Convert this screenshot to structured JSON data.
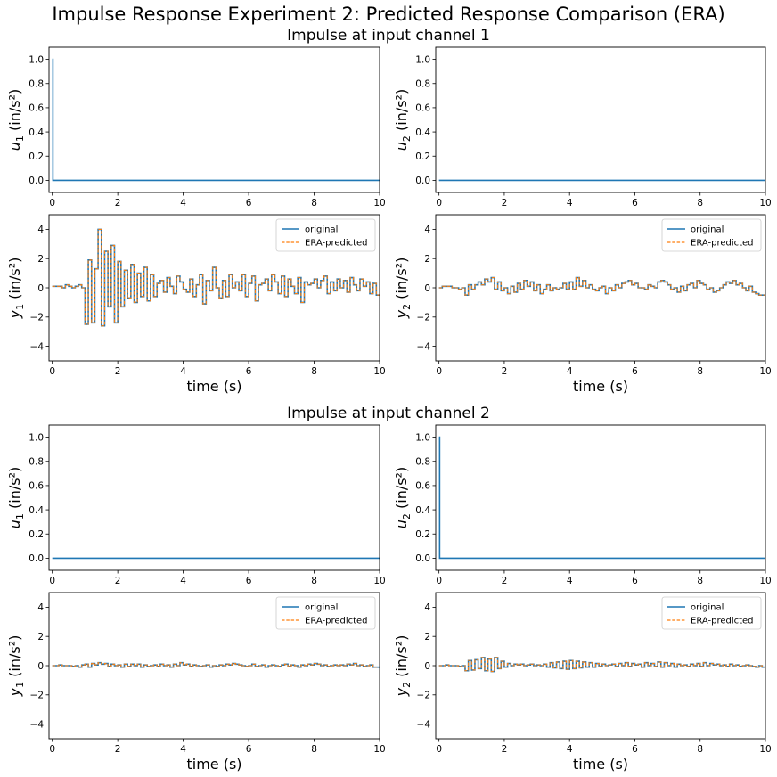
{
  "figure": {
    "suptitle": "Impulse Response Experiment 2: Predicted Response Comparison (ERA)",
    "group_titles": [
      "Impulse at input channel 1",
      "Impulse at input channel 2"
    ]
  },
  "colors": {
    "original": "#1f77b4",
    "predicted": "#ff7f0e",
    "axis": "#000000"
  },
  "legend": {
    "original": "original",
    "predicted": "ERA-predicted",
    "placement": "upper right"
  },
  "chart_data": [
    {
      "id": "g1-u1",
      "group": 1,
      "type": "line",
      "ylabel_var": "u",
      "ylabel_sub": "1",
      "ylabel_unit": "(in/s²)",
      "xlabel": "",
      "xlim": [
        -0.1,
        10
      ],
      "ylim": [
        -0.1,
        1.1
      ],
      "xticks": [
        0,
        2,
        4,
        6,
        8,
        10
      ],
      "yticks": [
        0.0,
        0.2,
        0.4,
        0.6,
        0.8,
        1.0
      ],
      "ytick_labels": [
        "0.0",
        "0.2",
        "0.4",
        "0.6",
        "0.8",
        "1.0"
      ],
      "legend": false,
      "kind": "input",
      "series": [
        {
          "name": "original",
          "x": [
            0,
            0.02,
            0.02,
            10
          ],
          "y": [
            1.0,
            1.0,
            0.0,
            0.0
          ]
        }
      ]
    },
    {
      "id": "g1-u2",
      "group": 1,
      "type": "line",
      "ylabel_var": "u",
      "ylabel_sub": "2",
      "ylabel_unit": "(in/s²)",
      "xlabel": "",
      "xlim": [
        -0.1,
        10
      ],
      "ylim": [
        -0.1,
        1.1
      ],
      "xticks": [
        0,
        2,
        4,
        6,
        8,
        10
      ],
      "yticks": [
        0.0,
        0.2,
        0.4,
        0.6,
        0.8,
        1.0
      ],
      "ytick_labels": [
        "0.0",
        "0.2",
        "0.4",
        "0.6",
        "0.8",
        "1.0"
      ],
      "legend": false,
      "kind": "input",
      "series": [
        {
          "name": "original",
          "x": [
            0,
            10
          ],
          "y": [
            0.0,
            0.0
          ]
        }
      ]
    },
    {
      "id": "g1-y1",
      "group": 1,
      "type": "line",
      "ylabel_var": "y",
      "ylabel_sub": "1",
      "ylabel_unit": "(in/s²)",
      "xlabel": "time (s)",
      "xlim": [
        -0.1,
        10
      ],
      "ylim": [
        -5,
        5
      ],
      "xticks": [
        0,
        2,
        4,
        6,
        8,
        10
      ],
      "yticks": [
        -4,
        -2,
        0,
        2,
        4
      ],
      "ytick_labels": [
        "−4",
        "−2",
        "0",
        "2",
        "4"
      ],
      "legend": true,
      "kind": "output",
      "dt": 0.1,
      "values": [
        0.1,
        0.1,
        0.1,
        0.0,
        0.2,
        0.1,
        0.0,
        0.1,
        0.2,
        0.0,
        -2.5,
        1.9,
        -2.4,
        1.3,
        4.0,
        -2.6,
        2.5,
        -1.3,
        2.9,
        -2.4,
        1.8,
        -1.3,
        1.2,
        -0.7,
        1.6,
        -1.0,
        1.0,
        -0.6,
        1.4,
        -0.9,
        0.9,
        -0.6,
        0.3,
        0.5,
        -0.3,
        0.7,
        0.1,
        -0.4,
        0.8,
        0.4,
        -0.1,
        -0.3,
        0.6,
        -0.6,
        0.2,
        0.9,
        -1.1,
        0.5,
        -0.2,
        1.4,
        0.0,
        -0.7,
        0.5,
        -0.6,
        0.9,
        0.0,
        0.4,
        -0.2,
        0.9,
        -0.6,
        0.3,
        0.8,
        -0.9,
        0.2,
        0.3,
        0.6,
        -0.2,
        0.9,
        0.4,
        -0.4,
        0.8,
        -0.6,
        0.6,
        0.1,
        -0.4,
        0.7,
        -1.0,
        0.4,
        0.2,
        0.3,
        0.6,
        0.0,
        0.5,
        0.8,
        -0.4,
        0.4,
        -0.2,
        0.6,
        0.0,
        0.5,
        -0.3,
        0.7,
        0.2,
        -0.2,
        0.6,
        0.1,
        0.4,
        -0.4,
        0.3,
        -0.5
      ]
    },
    {
      "id": "g1-y2",
      "group": 1,
      "type": "line",
      "ylabel_var": "y",
      "ylabel_sub": "2",
      "ylabel_unit": "(in/s²)",
      "xlabel": "time (s)",
      "xlim": [
        -0.1,
        10
      ],
      "ylim": [
        -5,
        5
      ],
      "xticks": [
        0,
        2,
        4,
        6,
        8,
        10
      ],
      "yticks": [
        -4,
        -2,
        0,
        2,
        4
      ],
      "ytick_labels": [
        "−4",
        "−2",
        "0",
        "2",
        "4"
      ],
      "legend": true,
      "kind": "output",
      "dt": 0.1,
      "values": [
        0.0,
        0.1,
        0.1,
        0.1,
        0.0,
        0.0,
        -0.1,
        0.0,
        -0.5,
        0.2,
        -0.1,
        0.2,
        0.4,
        0.2,
        0.6,
        0.4,
        0.7,
        -0.1,
        0.4,
        -0.2,
        0.0,
        -0.4,
        0.1,
        -0.3,
        0.3,
        -0.1,
        0.5,
        0.1,
        0.4,
        -0.2,
        0.2,
        -0.4,
        -0.1,
        0.2,
        -0.2,
        0.0,
        -0.1,
        0.0,
        0.3,
        -0.1,
        0.4,
        -0.1,
        0.7,
        0.1,
        0.5,
        0.0,
        0.2,
        -0.1,
        -0.2,
        0.0,
        0.1,
        -0.4,
        0.0,
        -0.2,
        0.2,
        0.0,
        0.3,
        0.4,
        0.5,
        0.2,
        0.3,
        0.0,
        0.0,
        -0.1,
        0.2,
        0.1,
        0.0,
        0.4,
        0.5,
        0.4,
        0.2,
        -0.1,
        0.0,
        -0.3,
        0.1,
        -0.2,
        0.2,
        0.3,
        0.0,
        0.5,
        0.3,
        0.2,
        -0.1,
        0.0,
        -0.3,
        -0.2,
        0.0,
        0.2,
        0.4,
        0.3,
        0.5,
        0.2,
        0.3,
        0.0,
        -0.2,
        0.1,
        -0.3,
        -0.4,
        -0.5,
        -0.5
      ]
    },
    {
      "id": "g2-u1",
      "group": 2,
      "type": "line",
      "ylabel_var": "u",
      "ylabel_sub": "1",
      "ylabel_unit": "(in/s²)",
      "xlabel": "",
      "xlim": [
        -0.1,
        10
      ],
      "ylim": [
        -0.1,
        1.1
      ],
      "xticks": [
        0,
        2,
        4,
        6,
        8,
        10
      ],
      "yticks": [
        0.0,
        0.2,
        0.4,
        0.6,
        0.8,
        1.0
      ],
      "ytick_labels": [
        "0.0",
        "0.2",
        "0.4",
        "0.6",
        "0.8",
        "1.0"
      ],
      "legend": false,
      "kind": "input",
      "series": [
        {
          "name": "original",
          "x": [
            0,
            10
          ],
          "y": [
            0.0,
            0.0
          ]
        }
      ]
    },
    {
      "id": "g2-u2",
      "group": 2,
      "type": "line",
      "ylabel_var": "u",
      "ylabel_sub": "2",
      "ylabel_unit": "(in/s²)",
      "xlabel": "",
      "xlim": [
        -0.1,
        10
      ],
      "ylim": [
        -0.1,
        1.1
      ],
      "xticks": [
        0,
        2,
        4,
        6,
        8,
        10
      ],
      "yticks": [
        0.0,
        0.2,
        0.4,
        0.6,
        0.8,
        1.0
      ],
      "ytick_labels": [
        "0.0",
        "0.2",
        "0.4",
        "0.6",
        "0.8",
        "1.0"
      ],
      "legend": false,
      "kind": "input",
      "series": [
        {
          "name": "original",
          "x": [
            0,
            0.02,
            0.02,
            10
          ],
          "y": [
            1.0,
            1.0,
            0.0,
            0.0
          ]
        }
      ]
    },
    {
      "id": "g2-y1",
      "group": 2,
      "type": "line",
      "ylabel_var": "y",
      "ylabel_sub": "1",
      "ylabel_unit": "(in/s²)",
      "xlabel": "time (s)",
      "xlim": [
        -0.1,
        10
      ],
      "ylim": [
        -5,
        5
      ],
      "xticks": [
        0,
        2,
        4,
        6,
        8,
        10
      ],
      "yticks": [
        -4,
        -2,
        0,
        2,
        4
      ],
      "ytick_labels": [
        "−4",
        "−2",
        "0",
        "2",
        "4"
      ],
      "legend": true,
      "kind": "output",
      "dt": 0.1,
      "values": [
        0.0,
        0.0,
        0.05,
        0.0,
        0.0,
        0.0,
        -0.05,
        0.0,
        -0.1,
        0.05,
        0.1,
        -0.1,
        0.15,
        0.05,
        0.2,
        0.1,
        0.15,
        -0.05,
        0.1,
        0.0,
        0.05,
        -0.1,
        0.1,
        -0.05,
        0.1,
        0.0,
        0.1,
        -0.1,
        0.05,
        -0.05,
        0.0,
        0.05,
        -0.05,
        0.1,
        0.0,
        0.05,
        -0.1,
        0.1,
        0.0,
        0.2,
        0.05,
        0.1,
        -0.05,
        0.05,
        0.0,
        -0.05,
        0.0,
        0.05,
        -0.1,
        0.0,
        -0.05,
        0.05,
        0.0,
        0.1,
        0.05,
        0.15,
        0.1,
        0.05,
        0.0,
        -0.05,
        0.0,
        0.1,
        -0.05,
        0.0,
        0.05,
        -0.1,
        0.0,
        0.05,
        0.0,
        -0.05,
        0.05,
        0.1,
        -0.05,
        0.05,
        0.0,
        -0.1,
        0.05,
        0.0,
        0.1,
        0.05,
        0.15,
        0.1,
        0.0,
        0.05,
        -0.05,
        0.0,
        0.05,
        0.0,
        0.05,
        0.0,
        0.1,
        0.05,
        0.15,
        0.0,
        0.05,
        -0.05,
        0.0,
        0.05,
        -0.1,
        -0.1
      ]
    },
    {
      "id": "g2-y2",
      "group": 2,
      "type": "line",
      "ylabel_var": "y",
      "ylabel_sub": "2",
      "ylabel_unit": "(in/s²)",
      "xlabel": "time (s)",
      "xlim": [
        -0.1,
        10
      ],
      "ylim": [
        -5,
        5
      ],
      "xticks": [
        0,
        2,
        4,
        6,
        8,
        10
      ],
      "yticks": [
        -4,
        -2,
        0,
        2,
        4
      ],
      "ytick_labels": [
        "−4",
        "−2",
        "0",
        "2",
        "4"
      ],
      "legend": true,
      "kind": "output",
      "dt": 0.1,
      "values": [
        0.0,
        0.0,
        0.05,
        0.0,
        0.0,
        0.0,
        -0.05,
        0.0,
        -0.35,
        0.35,
        -0.3,
        0.4,
        -0.2,
        0.55,
        -0.35,
        0.45,
        -0.4,
        0.55,
        -0.2,
        0.3,
        -0.1,
        0.15,
        0.0,
        0.1,
        0.05,
        0.1,
        0.0,
        0.05,
        0.1,
        0.0,
        0.05,
        0.0,
        0.1,
        -0.1,
        0.2,
        -0.15,
        0.25,
        -0.2,
        0.3,
        -0.25,
        0.35,
        -0.2,
        0.3,
        -0.15,
        0.25,
        -0.1,
        0.2,
        -0.1,
        0.15,
        -0.05,
        0.1,
        0.0,
        0.05,
        0.1,
        -0.05,
        0.15,
        0.0,
        0.2,
        -0.05,
        0.15,
        0.05,
        0.1,
        -0.1,
        0.2,
        0.0,
        0.15,
        -0.05,
        0.25,
        -0.1,
        0.2,
        0.0,
        0.15,
        -0.1,
        0.1,
        0.0,
        0.05,
        -0.05,
        0.1,
        0.0,
        0.15,
        -0.05,
        0.2,
        0.0,
        0.15,
        0.05,
        0.1,
        0.0,
        0.05,
        -0.05,
        0.1,
        0.0,
        0.05,
        -0.05,
        0.0,
        0.05,
        0.0,
        -0.05,
        -0.1,
        0.0,
        -0.1
      ]
    }
  ]
}
